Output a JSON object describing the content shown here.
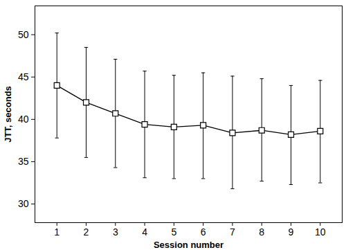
{
  "chart_data": {
    "type": "line",
    "x_label": "Session number",
    "y_label": "JTT, seconds",
    "x": [
      1,
      2,
      3,
      4,
      5,
      6,
      7,
      8,
      9,
      10
    ],
    "values": [
      44.0,
      42.0,
      40.7,
      39.4,
      39.1,
      39.3,
      38.4,
      38.7,
      38.2,
      38.6
    ],
    "error_low": [
      37.8,
      35.5,
      34.3,
      33.1,
      33.0,
      33.0,
      31.8,
      32.7,
      32.3,
      32.5
    ],
    "error_high": [
      50.2,
      48.5,
      47.1,
      45.7,
      45.2,
      45.5,
      45.1,
      44.8,
      44.0,
      44.6
    ],
    "color": "#000000",
    "marker": "square",
    "line_style": "solid",
    "xlim": [
      0.25,
      10.75
    ],
    "xticks": [
      1,
      2,
      3,
      4,
      5,
      6,
      7,
      8,
      9,
      10
    ],
    "ylim": [
      27.8,
      53.4
    ],
    "yticks": [
      30,
      35,
      40,
      45,
      50
    ],
    "grid": false
  }
}
